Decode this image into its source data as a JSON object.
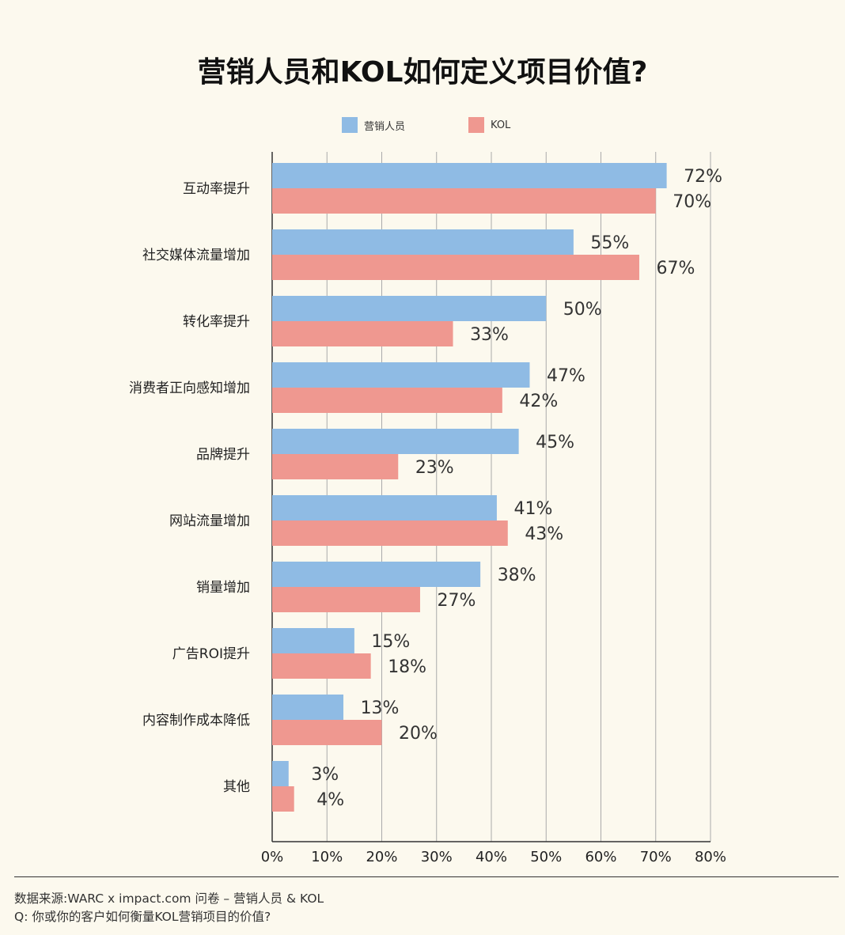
{
  "title": "营销人员和KOL如何定义项目价值?",
  "chart_data": {
    "type": "bar",
    "orientation": "horizontal",
    "categories": [
      "互动率提升",
      "社交媒体流量增加",
      "转化率提升",
      "消费者正向感知增加",
      "品牌提升",
      "网站流量增加",
      "销量增加",
      "广告ROI提升",
      "内容制作成本降低",
      "其他"
    ],
    "series": [
      {
        "name": "营销人员",
        "color": "#8fbbe4",
        "values": [
          72,
          55,
          50,
          47,
          45,
          41,
          38,
          15,
          13,
          3
        ]
      },
      {
        "name": "KOL",
        "color": "#ef9890",
        "values": [
          70,
          67,
          33,
          42,
          23,
          43,
          27,
          18,
          20,
          4
        ]
      }
    ],
    "value_suffix": "%",
    "xlim": [
      0,
      80
    ],
    "xticks": [
      "0%",
      "10%",
      "20%",
      "30%",
      "40%",
      "50%",
      "60%",
      "70%",
      "80%"
    ],
    "grid": true,
    "legend_position": "top-center"
  },
  "footer": {
    "source": "数据来源:WARC x impact.com 问卷 – 营销人员 & KOL",
    "question": "Q: 你或你的客户如何衡量KOL营销项目的价值?"
  }
}
